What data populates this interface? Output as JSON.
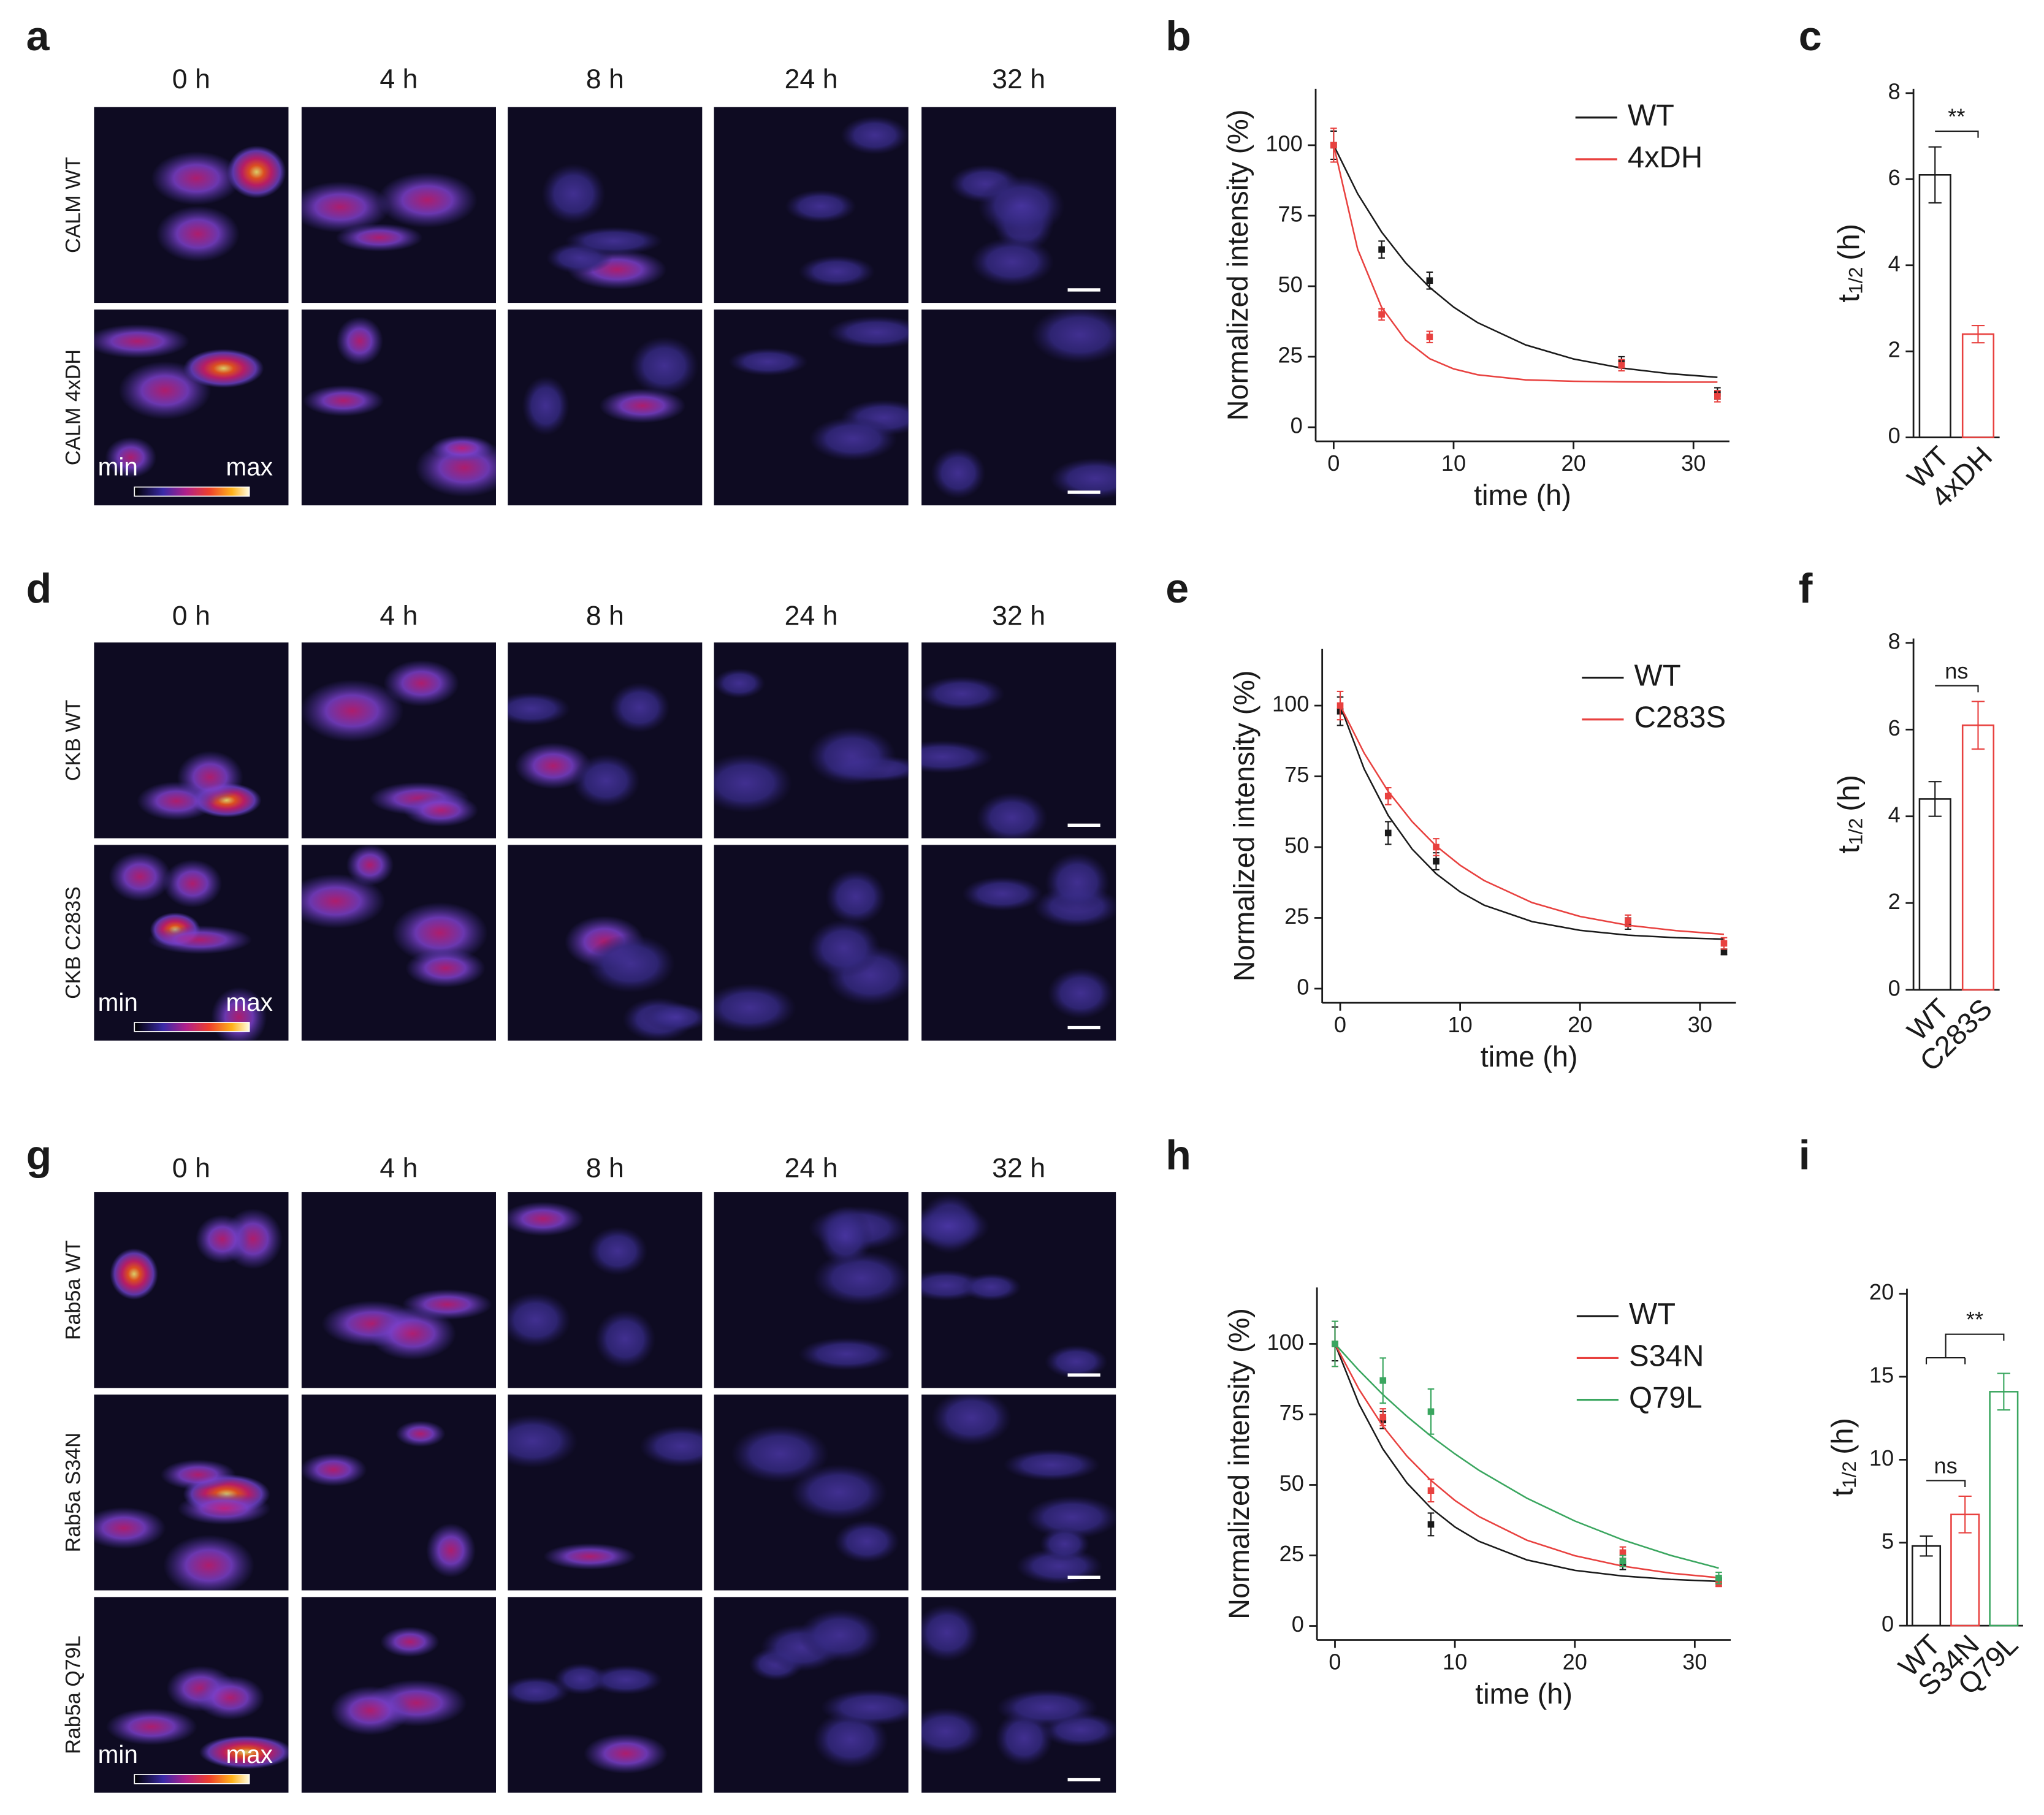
{
  "panel_letters": [
    "a",
    "b",
    "c",
    "d",
    "e",
    "f",
    "g",
    "h",
    "i"
  ],
  "image_grids": [
    {
      "columns": [
        "0 h",
        "4 h",
        "8 h",
        "24 h",
        "32 h"
      ],
      "rows": [
        "CALM WT",
        "CALM 4xDH"
      ],
      "colorbar": [
        "min",
        "max"
      ]
    },
    {
      "columns": [
        "0 h",
        "4 h",
        "8 h",
        "24 h",
        "32 h"
      ],
      "rows": [
        "CKB WT",
        "CKB C283S"
      ],
      "colorbar": [
        "min",
        "max"
      ]
    },
    {
      "columns": [
        "0 h",
        "4 h",
        "8 h",
        "24 h",
        "32 h"
      ],
      "rows": [
        "Rab5a WT",
        "Rab5a S34N",
        "Rab5a Q79L"
      ],
      "colorbar": [
        "min",
        "max"
      ]
    }
  ],
  "chart_data": [
    {
      "type": "line",
      "x_label": "time (h)",
      "y_label": "Normalized intensity (%)",
      "xlim": [
        -1.5,
        33
      ],
      "ylim": [
        -5,
        120
      ],
      "xticks": [
        0,
        10,
        20,
        30
      ],
      "yticks": [
        0,
        25,
        50,
        75,
        100
      ],
      "x": [
        0,
        4,
        8,
        24,
        32
      ],
      "fit_x": [
        0,
        2,
        4,
        6,
        8,
        10,
        12,
        16,
        20,
        24,
        28,
        32
      ],
      "series": [
        {
          "name": "WT",
          "color": "#1a1a1a",
          "values": [
            100,
            63,
            52,
            23,
            12
          ],
          "errors": [
            5,
            3,
            3,
            2,
            2
          ],
          "fit_values": [
            100,
            82.8,
            69.2,
            58.3,
            49.6,
            42.6,
            37.1,
            29.2,
            24.2,
            21.0,
            19.0,
            17.7
          ]
        },
        {
          "name": "4xDH",
          "color": "#e8413f",
          "values": [
            100,
            40,
            32,
            22,
            11
          ],
          "errors": [
            6,
            2,
            2,
            2,
            2
          ],
          "fit_values": [
            100,
            63.1,
            42.5,
            30.9,
            24.3,
            20.7,
            18.6,
            16.8,
            16.3,
            16.1,
            16.0,
            16.0
          ]
        }
      ]
    },
    {
      "type": "bar",
      "y_label": "t",
      "y_label_subscript": "1/2",
      "y_label_unit": "(h)",
      "ylim": [
        0,
        8.1
      ],
      "yticks": [
        0,
        2,
        4,
        6,
        8
      ],
      "categories": [
        "WT",
        "4xDH"
      ],
      "values": [
        6.1,
        2.4
      ],
      "errors": [
        0.65,
        0.2
      ],
      "colors": [
        "#1a1a1a",
        "#e8413f"
      ],
      "annotations": [
        {
          "text": "**",
          "left": [
            "WT"
          ],
          "right": [
            "4xDH"
          ]
        }
      ]
    },
    {
      "type": "line",
      "x_label": "time (h)",
      "y_label": "Normalized intensity (%)",
      "xlim": [
        -1.5,
        33
      ],
      "ylim": [
        -5,
        120
      ],
      "xticks": [
        0,
        10,
        20,
        30
      ],
      "yticks": [
        0,
        25,
        50,
        75,
        100
      ],
      "x": [
        0,
        4,
        8,
        24,
        32
      ],
      "fit_x": [
        0,
        2,
        4,
        6,
        8,
        10,
        12,
        16,
        20,
        24,
        28,
        32
      ],
      "series": [
        {
          "name": "WT",
          "color": "#1a1a1a",
          "values": [
            98,
            55,
            45,
            23,
            13
          ],
          "errors": [
            5,
            4,
            3,
            2,
            1
          ],
          "fit_values": [
            100,
            77.6,
            61.2,
            49.3,
            40.6,
            34.2,
            29.5,
            23.7,
            20.6,
            18.9,
            18.0,
            17.5
          ]
        },
        {
          "name": "C283S",
          "color": "#e8413f",
          "values": [
            100,
            68,
            50,
            24,
            16
          ],
          "errors": [
            5,
            3,
            3,
            2,
            2
          ],
          "fit_values": [
            100,
            83.2,
            69.7,
            59.0,
            50.4,
            43.6,
            38.2,
            30.4,
            25.5,
            22.4,
            20.5,
            19.2
          ]
        }
      ]
    },
    {
      "type": "bar",
      "y_label": "t",
      "y_label_subscript": "1/2",
      "y_label_unit": "(h)",
      "ylim": [
        0,
        8.1
      ],
      "yticks": [
        0,
        2,
        4,
        6,
        8
      ],
      "categories": [
        "WT",
        "C283S"
      ],
      "values": [
        4.4,
        6.1
      ],
      "errors": [
        0.4,
        0.55
      ],
      "colors": [
        "#1a1a1a",
        "#e8413f"
      ],
      "annotations": [
        {
          "text": "ns",
          "left": [
            "WT"
          ],
          "right": [
            "C283S"
          ]
        }
      ]
    },
    {
      "type": "line",
      "x_label": "time (h)",
      "y_label": "Normalized intensity (%)",
      "xlim": [
        -1.5,
        33
      ],
      "ylim": [
        -5,
        120
      ],
      "xticks": [
        0,
        10,
        20,
        30
      ],
      "yticks": [
        0,
        25,
        50,
        75,
        100
      ],
      "x": [
        0,
        4,
        8,
        24,
        32
      ],
      "fit_x": [
        0,
        2,
        4,
        6,
        8,
        10,
        12,
        16,
        20,
        24,
        28,
        32
      ],
      "series": [
        {
          "name": "WT",
          "color": "#1a1a1a",
          "values": [
            100,
            73,
            36,
            22,
            16
          ],
          "errors": [
            6,
            3,
            4,
            2,
            1
          ],
          "fit_values": [
            100,
            78.7,
            62.7,
            50.7,
            41.8,
            35.1,
            30.0,
            23.4,
            19.7,
            17.7,
            16.5,
            15.8
          ]
        },
        {
          "name": "S34N",
          "color": "#e8413f",
          "values": [
            100,
            74,
            48,
            26,
            15
          ],
          "errors": [
            8,
            3,
            4,
            2,
            1
          ],
          "fit_values": [
            100,
            83.9,
            70.8,
            60.2,
            51.6,
            44.5,
            38.8,
            30.4,
            24.9,
            21.2,
            18.7,
            17.1
          ]
        },
        {
          "name": "Q79L",
          "color": "#3aa65f",
          "values": [
            100,
            87,
            76,
            23,
            17
          ],
          "errors": [
            8,
            8,
            8,
            2,
            2
          ],
          "fit_values": [
            100,
            90.6,
            82.0,
            74.3,
            67.3,
            61.0,
            55.2,
            45.3,
            37.2,
            30.5,
            25.0,
            20.5
          ]
        }
      ]
    },
    {
      "type": "bar",
      "y_label": "t",
      "y_label_subscript": "1/2",
      "y_label_unit": "(h)",
      "ylim": [
        0,
        20.3
      ],
      "yticks": [
        0,
        5,
        10,
        15,
        20
      ],
      "categories": [
        "WT",
        "S34N",
        "Q79L"
      ],
      "values": [
        4.8,
        6.7,
        14.1
      ],
      "errors": [
        0.6,
        1.1,
        1.1
      ],
      "colors": [
        "#1a1a1a",
        "#e8413f",
        "#3aa65f"
      ],
      "annotations": [
        {
          "text": "ns",
          "left": [
            "WT"
          ],
          "right": [
            "S34N"
          ]
        },
        {
          "text": "**",
          "left": [
            "WT",
            "S34N"
          ],
          "right": [
            "Q79L"
          ]
        }
      ]
    }
  ]
}
